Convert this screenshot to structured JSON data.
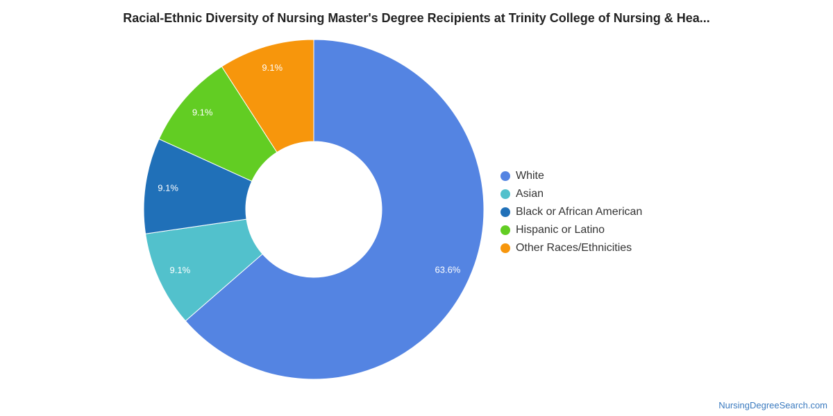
{
  "chart_data": {
    "type": "pie",
    "title": "Racial-Ethnic Diversity of Nursing Master's Degree Recipients at Trinity College of Nursing & Hea...",
    "donut": true,
    "legend_position": "right",
    "slices": [
      {
        "label": "White",
        "value": 63.6,
        "value_label": "63.6%",
        "color": "#5484e2"
      },
      {
        "label": "Asian",
        "value": 9.1,
        "value_label": "9.1%",
        "color": "#52c1cc"
      },
      {
        "label": "Black or African American",
        "value": 9.1,
        "value_label": "9.1%",
        "color": "#2070b8"
      },
      {
        "label": "Hispanic or Latino",
        "value": 9.1,
        "value_label": "9.1%",
        "color": "#62cd23"
      },
      {
        "label": "Other Races/Ethnicities",
        "value": 9.1,
        "value_label": "9.1%",
        "color": "#f7960c"
      }
    ]
  },
  "source": "NursingDegreeSearch.com"
}
